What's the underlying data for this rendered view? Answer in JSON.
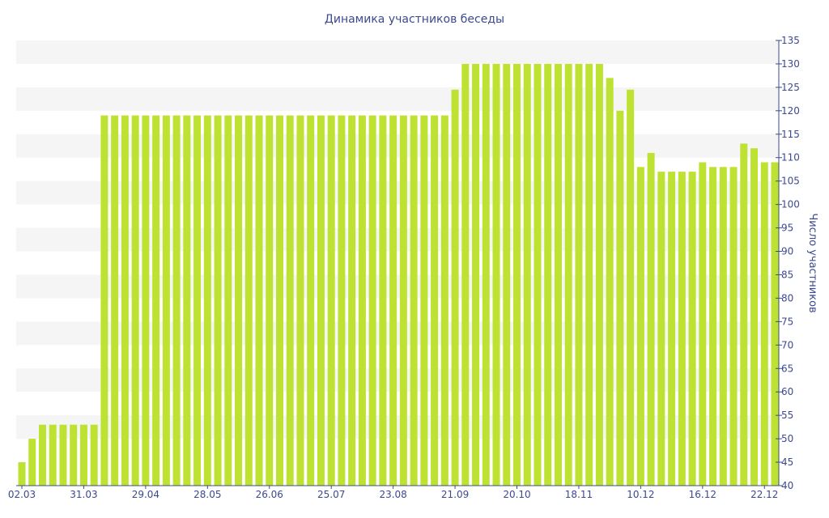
{
  "chart_data": {
    "type": "bar",
    "title": "Динамика участников беседы",
    "xlabel": "",
    "ylabel": "Число участников",
    "ylim": [
      40,
      135
    ],
    "y_ticks": [
      40,
      45,
      50,
      55,
      60,
      65,
      70,
      75,
      80,
      85,
      90,
      95,
      100,
      105,
      110,
      115,
      120,
      125,
      130,
      135
    ],
    "y_axis_side": "right",
    "grid": "alternating bands",
    "bar_color": "#bde232",
    "x_tick_labels": [
      {
        "label": "02.03",
        "index": 0
      },
      {
        "label": "31.03",
        "index": 6
      },
      {
        "label": "29.04",
        "index": 12
      },
      {
        "label": "28.05",
        "index": 18
      },
      {
        "label": "26.06",
        "index": 24
      },
      {
        "label": "25.07",
        "index": 30
      },
      {
        "label": "23.08",
        "index": 36
      },
      {
        "label": "21.09",
        "index": 42
      },
      {
        "label": "20.10",
        "index": 48
      },
      {
        "label": "18.11",
        "index": 54
      },
      {
        "label": "10.12",
        "index": 60
      },
      {
        "label": "16.12",
        "index": 66
      },
      {
        "label": "22.12",
        "index": 72
      }
    ],
    "values": [
      45,
      50,
      53,
      53,
      53,
      53,
      53,
      53,
      119,
      119,
      119,
      119,
      119,
      119,
      119,
      119,
      119,
      119,
      119,
      119,
      119,
      119,
      119,
      119,
      119,
      119,
      119,
      119,
      119,
      119,
      119,
      119,
      119,
      119,
      119,
      119,
      119,
      119,
      119,
      119,
      119,
      119,
      124.5,
      130,
      130,
      130,
      130,
      130,
      130,
      130,
      130,
      130,
      130,
      130,
      130,
      130,
      130,
      127,
      120,
      124.5,
      108,
      111,
      107,
      107,
      107,
      107,
      109,
      108,
      108,
      108,
      113,
      112,
      109,
      109
    ]
  }
}
